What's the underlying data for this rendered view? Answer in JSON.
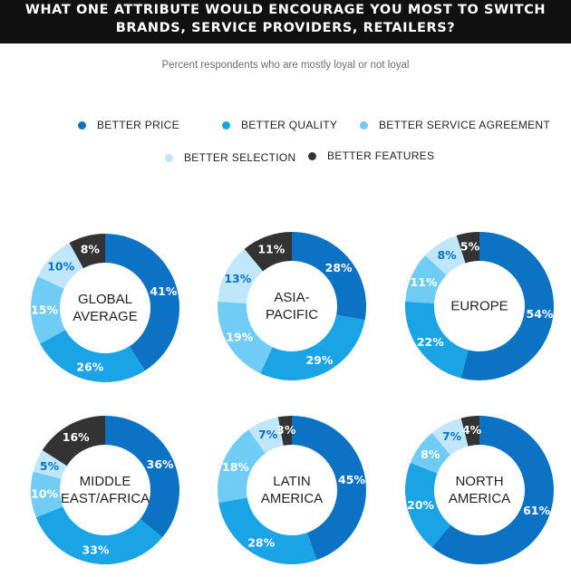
{
  "header": {
    "title_line1": "WHAT ONE ATTRIBUTE WOULD ENCOURAGE YOU MOST TO SWITCH",
    "title_line2": "BRANDS, SERVICE PROVIDERS, RETAILERS?"
  },
  "subtitle": "Percent respondents who are mostly loyal or not loyal",
  "legend": [
    {
      "label": "BETTER PRICE",
      "color": "#0b72c4"
    },
    {
      "label": "BETTER QUALITY",
      "color": "#1aa4e6"
    },
    {
      "label": "BETTER SERVICE AGREEMENT",
      "color": "#71ccf5"
    },
    {
      "label": "BETTER SELECTION",
      "color": "#bfe6fa"
    },
    {
      "label": "BETTER FEATURES",
      "color": "#333333"
    }
  ],
  "chart_data": {
    "type": "pie",
    "subtype": "donut",
    "categories": [
      "BETTER PRICE",
      "BETTER QUALITY",
      "BETTER SERVICE AGREEMENT",
      "BETTER SELECTION",
      "BETTER FEATURES"
    ],
    "colors": [
      "#0b72c4",
      "#1aa4e6",
      "#71ccf5",
      "#bfe6fa",
      "#333333"
    ],
    "charts": [
      {
        "title": [
          "GLOBAL",
          "AVERAGE"
        ],
        "values": [
          41,
          26,
          15,
          10,
          8
        ]
      },
      {
        "title": [
          "ASIA-",
          "PACIFIC"
        ],
        "values": [
          28,
          29,
          19,
          13,
          11
        ]
      },
      {
        "title": [
          "EUROPE"
        ],
        "values": [
          54,
          22,
          11,
          8,
          5
        ]
      },
      {
        "title": [
          "MIDDLE",
          "EAST/AFRICA"
        ],
        "values": [
          36,
          33,
          10,
          5,
          16
        ]
      },
      {
        "title": [
          "LATIN",
          "AMERICA"
        ],
        "values": [
          45,
          28,
          18,
          7,
          3
        ]
      },
      {
        "title": [
          "NORTH",
          "AMERICA"
        ],
        "values": [
          61,
          20,
          8,
          7,
          4
        ]
      }
    ],
    "value_suffix": "%"
  }
}
